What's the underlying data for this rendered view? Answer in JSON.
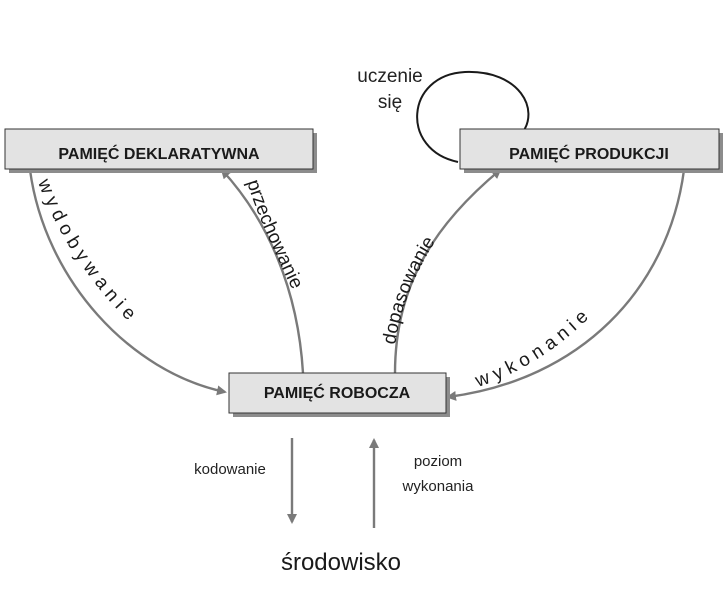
{
  "boxes": {
    "declarative": "PAMIĘĆ DEKLARATYWNA",
    "production": "PAMIĘĆ PRODUKCJI",
    "working": "PAMIĘĆ ROBOCZA"
  },
  "arcs": {
    "retrieval": "w y d o b y w a n i e",
    "storage": "przechowanie",
    "matching": "dopasowanie",
    "execution": "w y k o n a n i e"
  },
  "loop": {
    "line1": "uczenie",
    "line2": "się"
  },
  "io": {
    "encoding": "kodowanie",
    "performance_line1": "poziom",
    "performance_line2": "wykonania"
  },
  "environment": "środowisko",
  "colors": {
    "box_fill": "#e3e3e3",
    "box_shadow": "#8c8c8c",
    "arrow": "#7a7a7a",
    "text": "#1a1a1a"
  }
}
